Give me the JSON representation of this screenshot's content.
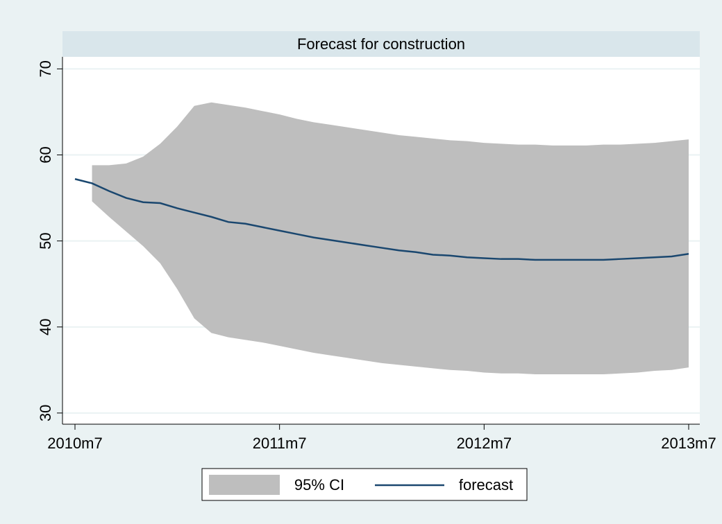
{
  "chart_data": {
    "type": "line",
    "title": "Forecast for construction",
    "x": [
      "2010m7",
      "2010m8",
      "2010m9",
      "2010m10",
      "2010m11",
      "2010m12",
      "2011m1",
      "2011m2",
      "2011m3",
      "2011m4",
      "2011m5",
      "2011m6",
      "2011m7",
      "2011m8",
      "2011m9",
      "2011m10",
      "2011m11",
      "2011m12",
      "2012m1",
      "2012m2",
      "2012m3",
      "2012m4",
      "2012m5",
      "2012m6",
      "2012m7",
      "2012m8",
      "2012m9",
      "2012m10",
      "2012m11",
      "2012m12",
      "2013m1",
      "2013m2",
      "2013m3",
      "2013m4",
      "2013m5",
      "2013m6",
      "2013m7"
    ],
    "series": [
      {
        "name": "95% CI",
        "type": "band",
        "color": "#bebebe",
        "upper": [
          null,
          58.8,
          58.8,
          59.0,
          59.8,
          61.3,
          63.3,
          65.7,
          66.1,
          65.8,
          65.5,
          65.1,
          64.7,
          64.2,
          63.8,
          63.5,
          63.2,
          62.9,
          62.6,
          62.3,
          62.1,
          61.9,
          61.7,
          61.6,
          61.4,
          61.3,
          61.2,
          61.2,
          61.1,
          61.1,
          61.1,
          61.2,
          61.2,
          61.3,
          61.4,
          61.6,
          61.8
        ],
        "lower": [
          null,
          54.6,
          52.8,
          51.1,
          49.4,
          47.4,
          44.4,
          41.0,
          39.3,
          38.8,
          38.5,
          38.2,
          37.8,
          37.4,
          37.0,
          36.7,
          36.4,
          36.1,
          35.8,
          35.6,
          35.4,
          35.2,
          35.0,
          34.9,
          34.7,
          34.6,
          34.6,
          34.5,
          34.5,
          34.5,
          34.5,
          34.5,
          34.6,
          34.7,
          34.9,
          35.0,
          35.3
        ]
      },
      {
        "name": "forecast",
        "type": "line",
        "color": "#1a476f",
        "values": [
          57.2,
          56.7,
          55.8,
          55.0,
          54.5,
          54.4,
          53.8,
          53.3,
          52.8,
          52.2,
          52.0,
          51.6,
          51.2,
          50.8,
          50.4,
          50.1,
          49.8,
          49.5,
          49.2,
          48.9,
          48.7,
          48.4,
          48.3,
          48.1,
          48.0,
          47.9,
          47.9,
          47.8,
          47.8,
          47.8,
          47.8,
          47.8,
          47.9,
          48.0,
          48.1,
          48.2,
          48.5
        ]
      }
    ],
    "xlim": [
      "2010m7",
      "2013m7"
    ],
    "xticks": [
      "2010m7",
      "2011m7",
      "2012m7",
      "2013m7"
    ],
    "ylim": [
      28.7,
      71.4
    ],
    "yticks": [
      30,
      40,
      50,
      60,
      70
    ],
    "grid": true,
    "legend": "bottom"
  }
}
